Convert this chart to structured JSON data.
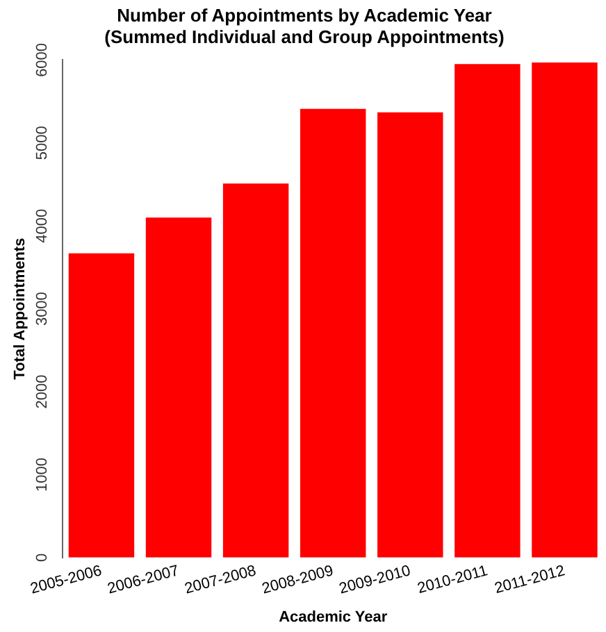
{
  "chart_data": {
    "type": "bar",
    "title": "Number of Appointments by Academic Year\n(Summed Individual and Group Appointments)",
    "xlabel": "Academic Year",
    "ylabel": "Total Appointments",
    "categories": [
      "2005-2006",
      "2006-2007",
      "2007-2008",
      "2008-2009",
      "2009-2010",
      "2010-2011",
      "2011-2012"
    ],
    "values": [
      3670,
      4100,
      4510,
      5410,
      5370,
      5950,
      5970
    ],
    "color": "#ff0000",
    "ylim": [
      0,
      6000
    ],
    "yticks": [
      0,
      1000,
      2000,
      3000,
      4000,
      5000,
      6000
    ],
    "grid": false,
    "legend": false
  }
}
